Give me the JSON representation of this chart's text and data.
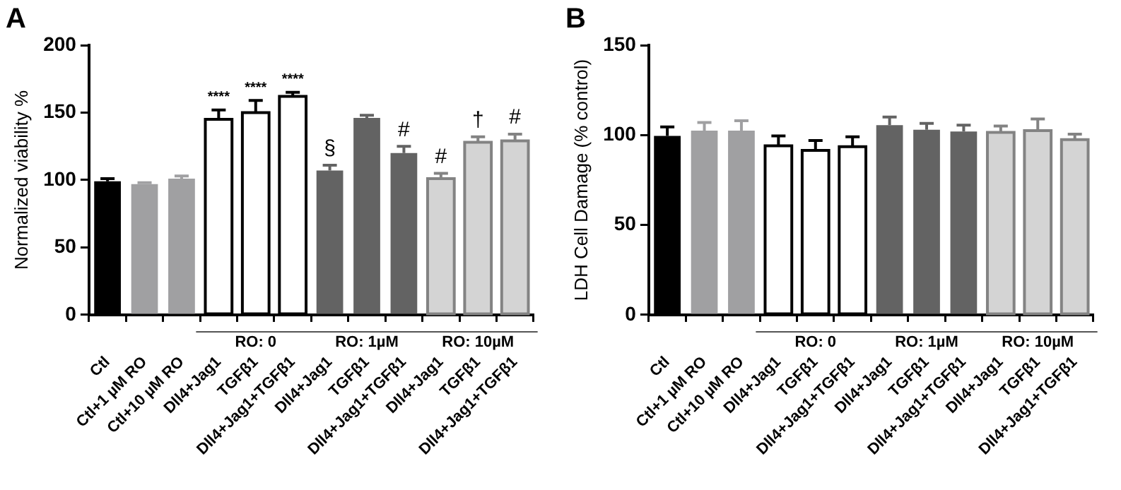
{
  "chart_data": [
    {
      "type": "bar",
      "title": "A",
      "ylabel": "Normalized viability %",
      "categories": [
        "Ctl",
        "Ctl+1 µM RO",
        "Ctl+10 µM RO",
        "Dll4+Jag1",
        "TGFβ1",
        "Dll4+Jag1+TGFβ1",
        "Dll4+Jag1",
        "TGFβ1",
        "Dll4+Jag1+TGFβ1",
        "Dll4+Jag1",
        "TGFβ1",
        "Dll4+Jag1+TGFβ1"
      ],
      "values": [
        99,
        97,
        101,
        145,
        150,
        162,
        107,
        146,
        120,
        101,
        128,
        129
      ],
      "errors": [
        [
          99,
          101
        ],
        [
          97,
          98
        ],
        [
          101,
          103
        ],
        [
          145,
          152
        ],
        [
          150,
          159
        ],
        [
          162,
          165
        ],
        [
          107,
          111
        ],
        [
          146,
          148
        ],
        [
          120,
          125
        ],
        [
          101,
          105
        ],
        [
          128,
          132
        ],
        [
          129,
          134
        ]
      ],
      "colors": [
        "#000000",
        "#a0a0a2",
        "#a0a0a2",
        "#ffffff",
        "#ffffff",
        "#ffffff",
        "#636363",
        "#636363",
        "#636363",
        "#d4d4d4",
        "#d4d4d4",
        "#d4d4d4"
      ],
      "ylim": [
        0,
        200
      ],
      "yticks": [
        0,
        50,
        100,
        150,
        200
      ],
      "grid": false,
      "legend": false,
      "value_labels": [
        null,
        null,
        null,
        "****",
        "****",
        "****",
        "§",
        null,
        "#",
        "#",
        "†",
        "#"
      ],
      "annotations": [
        "RO: 0",
        "RO: 1µM",
        "RO: 10µM"
      ]
    },
    {
      "type": "bar",
      "title": "B",
      "ylabel": "LDH Cell Damage (% control)",
      "categories": [
        "Ctl",
        "Ctl+1 µM RO",
        "Ctl+10 µM RO",
        "Dll4+Jag1",
        "TGFβ1",
        "Dll4+Jag1+TGFβ1",
        "Dll4+Jag1",
        "TGFβ1",
        "Dll4+Jag1+TGFβ1",
        "Dll4+Jag1",
        "TGFβ1",
        "Dll4+Jag1+TGFβ1"
      ],
      "values": [
        99.5,
        102.5,
        102.5,
        94,
        91.5,
        93.5,
        105.5,
        103,
        102,
        101.5,
        102.5,
        97.5
      ],
      "errors": [
        [
          99.5,
          104.5
        ],
        [
          102.5,
          107
        ],
        [
          102.5,
          108
        ],
        [
          94,
          99.5
        ],
        [
          91.5,
          97
        ],
        [
          93.5,
          99
        ],
        [
          105.5,
          110
        ],
        [
          103,
          106.5
        ],
        [
          102,
          105.5
        ],
        [
          101.5,
          105
        ],
        [
          102.5,
          109
        ],
        [
          97.5,
          100.5
        ]
      ],
      "colors": [
        "#000000",
        "#a0a0a2",
        "#a0a0a2",
        "#ffffff",
        "#ffffff",
        "#ffffff",
        "#636363",
        "#636363",
        "#636363",
        "#d4d4d4",
        "#d4d4d4",
        "#d4d4d4"
      ],
      "ylim": [
        0,
        150
      ],
      "yticks": [
        0,
        50,
        100,
        150
      ],
      "grid": false,
      "legend": false,
      "annotations": [
        "RO: 0",
        "RO: 1µM",
        "RO: 10µM"
      ]
    }
  ]
}
